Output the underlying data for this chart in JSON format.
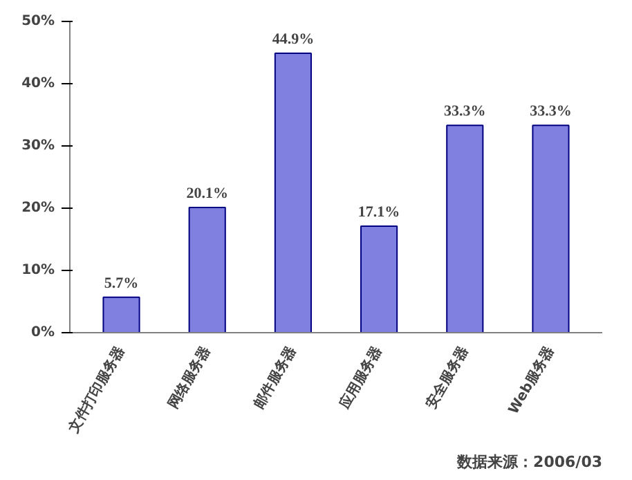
{
  "chart_data": {
    "type": "bar",
    "categories": [
      "文件打印服务器",
      "网络服务器",
      "邮件服务器",
      "应用服务器",
      "安全服务器",
      "Web服务器"
    ],
    "values": [
      5.7,
      20.1,
      44.9,
      17.1,
      33.3,
      33.3
    ],
    "value_labels": [
      "5.7%",
      "20.1%",
      "44.9%",
      "17.1%",
      "33.3%",
      "33.3%"
    ],
    "color": "#8080e0",
    "ylim": [
      0,
      50
    ],
    "yticks": [
      {
        "value": 0,
        "label": "0%"
      },
      {
        "value": 10,
        "label": "10%"
      },
      {
        "value": 20,
        "label": "20%"
      },
      {
        "value": 30,
        "label": "30%"
      },
      {
        "value": 40,
        "label": "40%"
      },
      {
        "value": 50,
        "label": "50%"
      }
    ],
    "grid": false,
    "annotations": [
      "数据来源：2006/03"
    ]
  }
}
